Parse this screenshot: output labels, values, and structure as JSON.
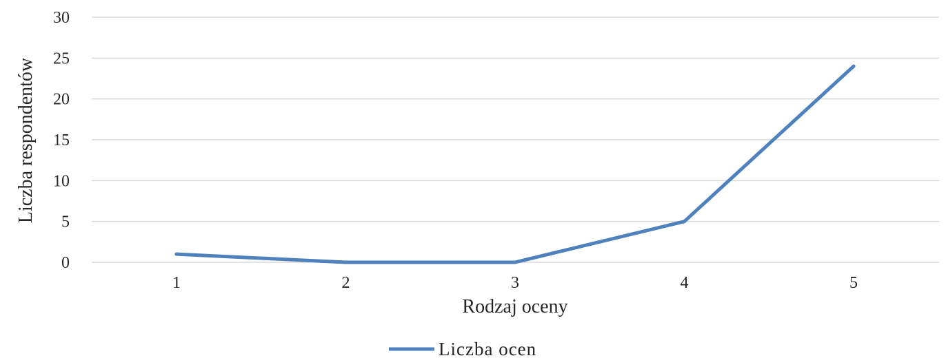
{
  "chart_data": {
    "type": "line",
    "x": [
      1,
      2,
      3,
      4,
      5
    ],
    "series": [
      {
        "name": "Liczba ocen",
        "values": [
          1,
          0,
          0,
          5,
          24
        ],
        "color": "#4f81bd"
      }
    ],
    "xlabel": "Rodzaj oceny",
    "ylabel": "Liczba respondentów",
    "ylim": [
      0,
      30
    ],
    "yticks": [
      0,
      5,
      10,
      15,
      20,
      25,
      30
    ],
    "grid": true,
    "legend": "bottom"
  }
}
